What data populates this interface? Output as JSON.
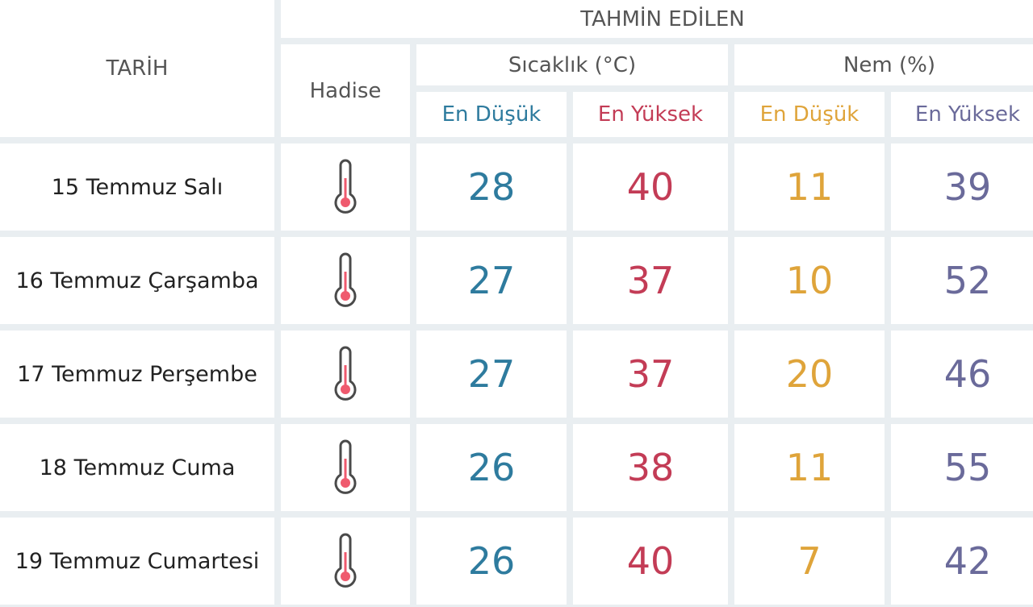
{
  "header": {
    "tarih": "TARİH",
    "tahmin": "TAHMİN EDİLEN",
    "hadise": "Hadise",
    "sicaklik": "Sıcaklık (°C)",
    "nem": "Nem (%)",
    "sicaklik_low": "En Düşük",
    "sicaklik_high": "En Yüksek",
    "nem_low": "En Düşük",
    "nem_high": "En Yüksek"
  },
  "colors": {
    "temp_low": "#2e7b9e",
    "temp_high": "#c33c56",
    "hum_low": "#dfa43a",
    "hum_high": "#6a6a9a",
    "thermometer_fill": "#ef5a6e"
  },
  "rows": [
    {
      "date": "15 Temmuz Salı",
      "icon": "thermometer-icon",
      "temp_low": "28",
      "temp_high": "40",
      "hum_low": "11",
      "hum_high": "39"
    },
    {
      "date": "16 Temmuz Çarşamba",
      "icon": "thermometer-icon",
      "temp_low": "27",
      "temp_high": "37",
      "hum_low": "10",
      "hum_high": "52"
    },
    {
      "date": "17 Temmuz Perşembe",
      "icon": "thermometer-icon",
      "temp_low": "27",
      "temp_high": "37",
      "hum_low": "20",
      "hum_high": "46"
    },
    {
      "date": "18 Temmuz Cuma",
      "icon": "thermometer-icon",
      "temp_low": "26",
      "temp_high": "38",
      "hum_low": "11",
      "hum_high": "55"
    },
    {
      "date": "19 Temmuz Cumartesi",
      "icon": "thermometer-icon",
      "temp_low": "26",
      "temp_high": "40",
      "hum_low": "7",
      "hum_high": "42"
    }
  ]
}
